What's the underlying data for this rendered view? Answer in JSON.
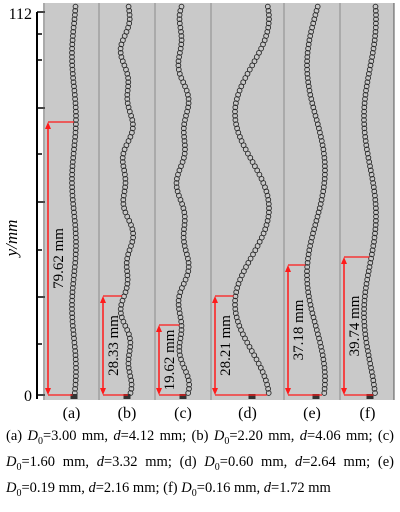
{
  "figure": {
    "y_axis": {
      "label": "y/mm",
      "ticks": [
        "112",
        "0"
      ]
    },
    "panels": [
      {
        "label": "(a)",
        "length_label": "79.62 mm"
      },
      {
        "label": "(b)",
        "length_label": "28.33 mm"
      },
      {
        "label": "(c)",
        "length_label": "19.62 mm"
      },
      {
        "label": "(d)",
        "length_label": "28.21 mm"
      },
      {
        "label": "(e)",
        "length_label": "37.18 mm"
      },
      {
        "label": "(f)",
        "length_label": "39.74 mm"
      }
    ],
    "colors": {
      "panel_background": "#c9c9c9",
      "annotation": "#ff1a1a",
      "bubble": "#2a2a2a"
    }
  },
  "caption": {
    "items": [
      {
        "prefix": "(a) ",
        "D0": "3.00",
        "d": "4.12"
      },
      {
        "prefix": "(b) ",
        "D0": "2.20",
        "d": "4.06"
      },
      {
        "prefix": "(c) ",
        "D0": "1.60",
        "d": "3.32"
      },
      {
        "prefix": "(d) ",
        "D0": "0.60",
        "d": "2.64"
      },
      {
        "prefix": "(e) ",
        "D0": "0.19",
        "d": "2.16"
      },
      {
        "prefix": "(f) ",
        "D0": "0.16",
        "d": "1.72"
      }
    ],
    "unit": "mm"
  }
}
